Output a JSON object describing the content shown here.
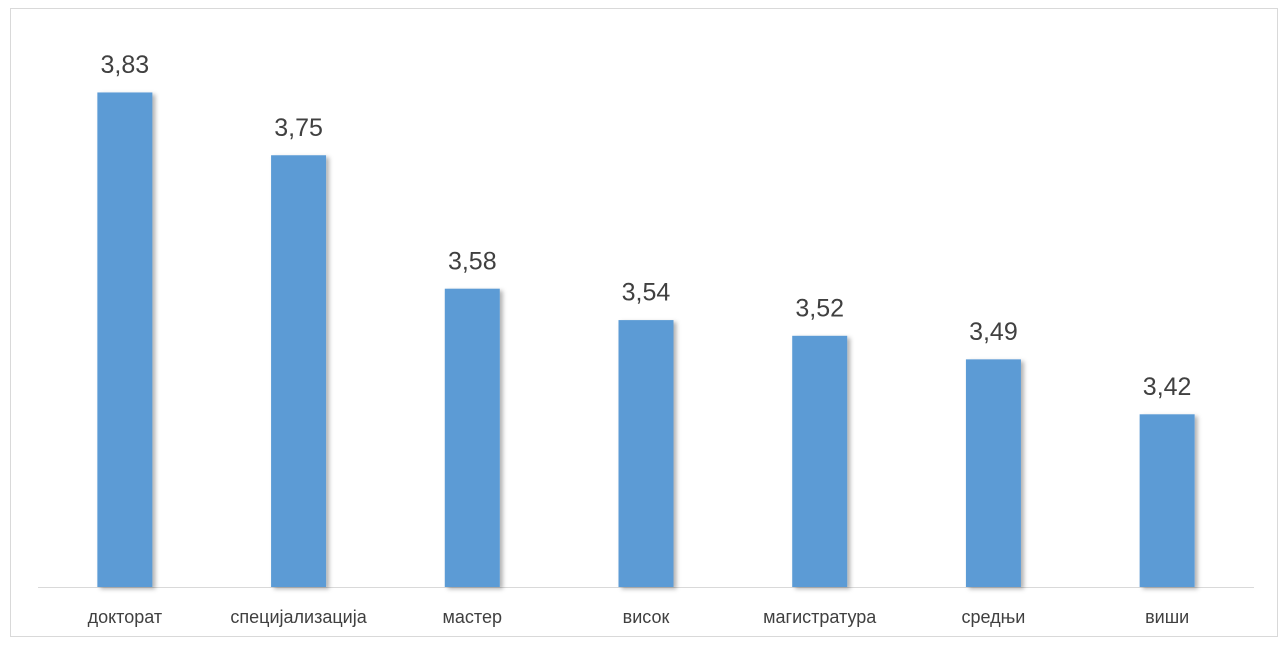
{
  "chart_data": {
    "type": "bar",
    "categories": [
      "докторат",
      "специјализација",
      "мастер",
      "висок",
      "магистратура",
      "средњи",
      "виши"
    ],
    "values": [
      3.83,
      3.75,
      3.58,
      3.54,
      3.52,
      3.49,
      3.42
    ],
    "value_labels": [
      "3,83",
      "3,75",
      "3,58",
      "3,54",
      "3,52",
      "3,49",
      "3,42"
    ],
    "color": "#5b9bd5",
    "ylim": [
      3.2,
      3.9
    ]
  }
}
